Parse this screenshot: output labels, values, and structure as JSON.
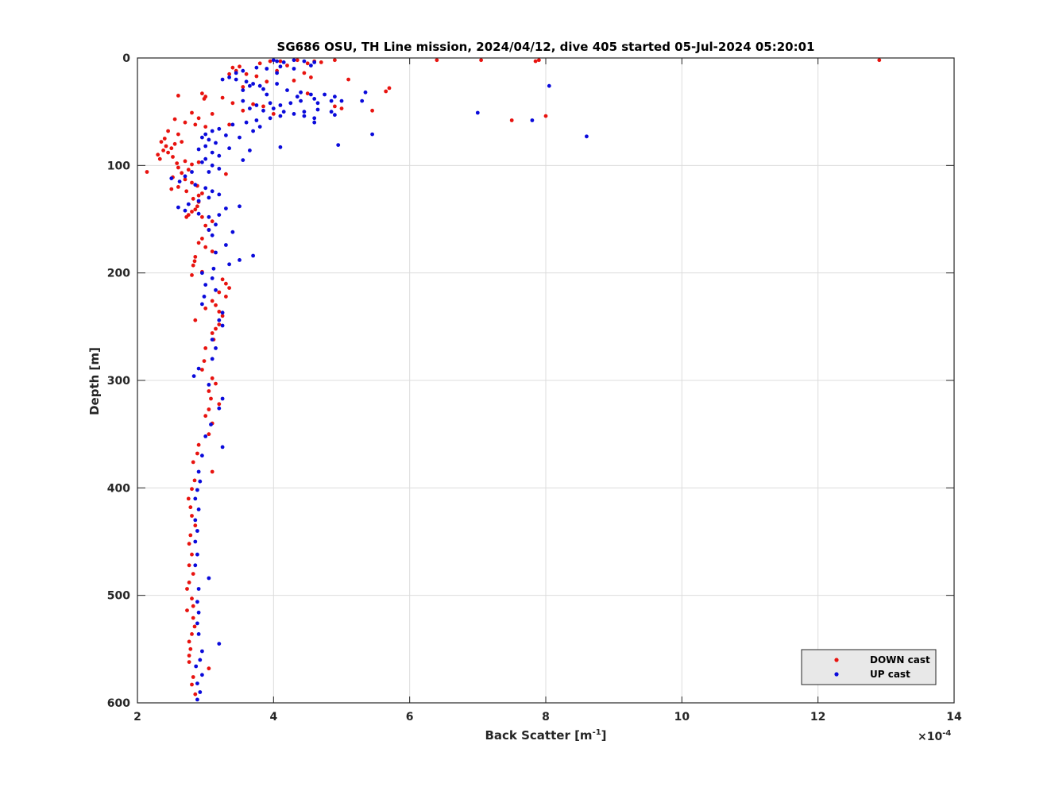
{
  "chart_data": {
    "type": "scatter",
    "title": "SG686 OSU, TH Line mission, 2024/04/12, dive 405 started 05-Jul-2024 05:20:01",
    "xlabel": "Back Scatter [m",
    "xlabel_sup": "-1",
    "xlabel_end": "]",
    "ylabel": "Depth [m]",
    "x_multiplier_label": "×10",
    "x_multiplier_exp": "-4",
    "xlim": [
      2,
      14
    ],
    "ylim": [
      0,
      600
    ],
    "y_reversed": true,
    "grid": true,
    "legend_position": "bottom-right",
    "x_ticks": [
      "2",
      "4",
      "6",
      "8",
      "10",
      "12",
      "14"
    ],
    "y_ticks": [
      "0",
      "100",
      "200",
      "300",
      "400",
      "500",
      "600"
    ],
    "series": [
      {
        "name": "DOWN cast",
        "color": "#e8130f",
        "points": [
          [
            12.9,
            2
          ],
          [
            7.9,
            2
          ],
          [
            7.85,
            3
          ],
          [
            7.05,
            2
          ],
          [
            6.4,
            2
          ],
          [
            4.9,
            2
          ],
          [
            4.6,
            3
          ],
          [
            4.35,
            2
          ],
          [
            4.5,
            5
          ],
          [
            4.7,
            4
          ],
          [
            4.1,
            3
          ],
          [
            4.2,
            7
          ],
          [
            3.95,
            3
          ],
          [
            3.8,
            5
          ],
          [
            3.5,
            8
          ],
          [
            3.4,
            9
          ],
          [
            3.45,
            12
          ],
          [
            3.35,
            15
          ],
          [
            3.6,
            15
          ],
          [
            3.75,
            17
          ],
          [
            4.05,
            12
          ],
          [
            4.45,
            14
          ],
          [
            4.55,
            18
          ],
          [
            4.3,
            21
          ],
          [
            5.1,
            20
          ],
          [
            5.7,
            28
          ],
          [
            5.65,
            31
          ],
          [
            5.45,
            49
          ],
          [
            5.0,
            47
          ],
          [
            4.9,
            45
          ],
          [
            4.5,
            33
          ],
          [
            3.9,
            22
          ],
          [
            3.55,
            27
          ],
          [
            3.4,
            42
          ],
          [
            3.7,
            43
          ],
          [
            3.85,
            45
          ],
          [
            3.55,
            49
          ],
          [
            4.0,
            52
          ],
          [
            3.25,
            37
          ],
          [
            2.95,
            33
          ],
          [
            3.0,
            36
          ],
          [
            2.6,
            35
          ],
          [
            2.98,
            38
          ],
          [
            7.5,
            58
          ],
          [
            8.0,
            54
          ],
          [
            2.8,
            51
          ],
          [
            2.9,
            56
          ],
          [
            3.1,
            52
          ],
          [
            3.35,
            62
          ],
          [
            3.0,
            64
          ],
          [
            2.55,
            57
          ],
          [
            2.7,
            60
          ],
          [
            2.85,
            62
          ],
          [
            2.45,
            68
          ],
          [
            2.6,
            71
          ],
          [
            2.4,
            75
          ],
          [
            2.55,
            80
          ],
          [
            2.65,
            78
          ],
          [
            2.35,
            78
          ],
          [
            2.42,
            82
          ],
          [
            2.5,
            84
          ],
          [
            2.38,
            86
          ],
          [
            2.3,
            90
          ],
          [
            2.45,
            88
          ],
          [
            2.52,
            92
          ],
          [
            2.33,
            94
          ],
          [
            2.58,
            98
          ],
          [
            2.7,
            96
          ],
          [
            2.8,
            99
          ],
          [
            2.9,
            97
          ],
          [
            2.6,
            102
          ],
          [
            2.75,
            104
          ],
          [
            2.65,
            107
          ],
          [
            2.52,
            111
          ],
          [
            2.7,
            113
          ],
          [
            2.8,
            116
          ],
          [
            2.88,
            119
          ],
          [
            2.6,
            120
          ],
          [
            2.5,
            122
          ],
          [
            2.72,
            124
          ],
          [
            2.14,
            106
          ],
          [
            3.3,
            108
          ],
          [
            2.9,
            128
          ],
          [
            2.82,
            131
          ],
          [
            2.95,
            126
          ],
          [
            2.9,
            134
          ],
          [
            2.88,
            138
          ],
          [
            2.85,
            141
          ],
          [
            2.8,
            143
          ],
          [
            2.75,
            146
          ],
          [
            2.72,
            148
          ],
          [
            2.95,
            148
          ],
          [
            3.1,
            152
          ],
          [
            3.0,
            156
          ],
          [
            3.05,
            160
          ],
          [
            2.95,
            168
          ],
          [
            2.9,
            172
          ],
          [
            3.0,
            176
          ],
          [
            3.1,
            180
          ],
          [
            2.85,
            185
          ],
          [
            2.84,
            189
          ],
          [
            2.82,
            193
          ],
          [
            2.8,
            202
          ],
          [
            2.95,
            199
          ],
          [
            3.25,
            206
          ],
          [
            3.3,
            210
          ],
          [
            3.35,
            214
          ],
          [
            3.2,
            218
          ],
          [
            3.3,
            222
          ],
          [
            3.1,
            226
          ],
          [
            3.15,
            230
          ],
          [
            3.0,
            233
          ],
          [
            3.2,
            236
          ],
          [
            3.25,
            240
          ],
          [
            2.85,
            244
          ],
          [
            3.2,
            248
          ],
          [
            3.15,
            252
          ],
          [
            3.1,
            256
          ],
          [
            3.12,
            262
          ],
          [
            3.0,
            270
          ],
          [
            2.98,
            282
          ],
          [
            2.95,
            290
          ],
          [
            3.1,
            298
          ],
          [
            3.15,
            303
          ],
          [
            3.05,
            310
          ],
          [
            3.08,
            317
          ],
          [
            3.2,
            322
          ],
          [
            3.05,
            327
          ],
          [
            3.0,
            333
          ],
          [
            3.1,
            340
          ],
          [
            3.05,
            350
          ],
          [
            2.9,
            360
          ],
          [
            2.88,
            368
          ],
          [
            2.82,
            376
          ],
          [
            3.1,
            385
          ],
          [
            2.84,
            393
          ],
          [
            2.8,
            401
          ],
          [
            2.75,
            410
          ],
          [
            2.78,
            418
          ],
          [
            2.8,
            426
          ],
          [
            2.85,
            435
          ],
          [
            2.78,
            444
          ],
          [
            2.76,
            452
          ],
          [
            2.8,
            462
          ],
          [
            2.76,
            472
          ],
          [
            2.82,
            480
          ],
          [
            2.76,
            488
          ],
          [
            2.73,
            494
          ],
          [
            2.8,
            503
          ],
          [
            2.82,
            510
          ],
          [
            2.73,
            514
          ],
          [
            2.82,
            521
          ],
          [
            2.84,
            529
          ],
          [
            2.8,
            536
          ],
          [
            2.76,
            543
          ],
          [
            2.78,
            550
          ],
          [
            2.76,
            556
          ],
          [
            2.76,
            562
          ],
          [
            3.05,
            568
          ],
          [
            2.82,
            576
          ],
          [
            2.8,
            583
          ],
          [
            2.85,
            592
          ]
        ]
      },
      {
        "name": "UP cast",
        "color": "#0a0adb",
        "points": [
          [
            4.0,
            2
          ],
          [
            4.05,
            3
          ],
          [
            4.15,
            4
          ],
          [
            4.3,
            2
          ],
          [
            4.45,
            3
          ],
          [
            4.6,
            4
          ],
          [
            4.55,
            7
          ],
          [
            4.1,
            8
          ],
          [
            4.3,
            10
          ],
          [
            4.05,
            14
          ],
          [
            3.9,
            10
          ],
          [
            3.75,
            9
          ],
          [
            3.55,
            12
          ],
          [
            3.45,
            14
          ],
          [
            3.35,
            18
          ],
          [
            3.45,
            20
          ],
          [
            3.6,
            22
          ],
          [
            3.7,
            24
          ],
          [
            3.8,
            26
          ],
          [
            3.65,
            26
          ],
          [
            3.55,
            30
          ],
          [
            3.25,
            20
          ],
          [
            3.85,
            29
          ],
          [
            3.9,
            34
          ],
          [
            4.05,
            24
          ],
          [
            4.2,
            30
          ],
          [
            4.35,
            36
          ],
          [
            4.4,
            32
          ],
          [
            4.55,
            34
          ],
          [
            4.6,
            38
          ],
          [
            4.75,
            34
          ],
          [
            4.9,
            36
          ],
          [
            5.0,
            40
          ],
          [
            5.35,
            32
          ],
          [
            5.3,
            40
          ],
          [
            4.85,
            40
          ],
          [
            4.65,
            42
          ],
          [
            4.4,
            40
          ],
          [
            4.25,
            42
          ],
          [
            4.1,
            44
          ],
          [
            3.95,
            42
          ],
          [
            3.75,
            44
          ],
          [
            3.55,
            40
          ],
          [
            3.65,
            47
          ],
          [
            3.85,
            49
          ],
          [
            4.0,
            47
          ],
          [
            4.15,
            50
          ],
          [
            4.3,
            52
          ],
          [
            4.45,
            54
          ],
          [
            4.6,
            56
          ],
          [
            4.45,
            50
          ],
          [
            4.65,
            48
          ],
          [
            4.85,
            50
          ],
          [
            4.9,
            53
          ],
          [
            4.6,
            60
          ],
          [
            4.1,
            54
          ],
          [
            3.95,
            56
          ],
          [
            3.75,
            58
          ],
          [
            3.8,
            64
          ],
          [
            3.6,
            60
          ],
          [
            3.4,
            62
          ],
          [
            3.7,
            68
          ],
          [
            7.0,
            51
          ],
          [
            7.8,
            58
          ],
          [
            8.05,
            26
          ],
          [
            8.6,
            73
          ],
          [
            4.95,
            81
          ],
          [
            5.45,
            71
          ],
          [
            4.1,
            83
          ],
          [
            3.55,
            95
          ],
          [
            3.35,
            84
          ],
          [
            3.5,
            74
          ],
          [
            3.65,
            86
          ],
          [
            3.3,
            72
          ],
          [
            3.2,
            66
          ],
          [
            3.1,
            68
          ],
          [
            3.0,
            71
          ],
          [
            2.95,
            74
          ],
          [
            3.05,
            76
          ],
          [
            3.15,
            79
          ],
          [
            3.0,
            82
          ],
          [
            2.9,
            85
          ],
          [
            3.1,
            88
          ],
          [
            3.2,
            91
          ],
          [
            3.0,
            94
          ],
          [
            2.95,
            97
          ],
          [
            3.1,
            100
          ],
          [
            3.2,
            103
          ],
          [
            3.05,
            106
          ],
          [
            2.8,
            106
          ],
          [
            2.7,
            110
          ],
          [
            2.5,
            112
          ],
          [
            2.62,
            115
          ],
          [
            2.85,
            118
          ],
          [
            3.0,
            121
          ],
          [
            3.1,
            124
          ],
          [
            3.2,
            127
          ],
          [
            3.05,
            130
          ],
          [
            2.9,
            133
          ],
          [
            2.75,
            136
          ],
          [
            2.6,
            139
          ],
          [
            2.7,
            142
          ],
          [
            2.9,
            145
          ],
          [
            3.05,
            148
          ],
          [
            3.2,
            146
          ],
          [
            3.3,
            140
          ],
          [
            3.5,
            138
          ],
          [
            3.15,
            155
          ],
          [
            3.05,
            160
          ],
          [
            3.1,
            165
          ],
          [
            3.4,
            162
          ],
          [
            3.3,
            174
          ],
          [
            3.15,
            181
          ],
          [
            3.7,
            184
          ],
          [
            3.5,
            188
          ],
          [
            3.35,
            192
          ],
          [
            3.12,
            196
          ],
          [
            2.95,
            200
          ],
          [
            3.1,
            205
          ],
          [
            3.0,
            211
          ],
          [
            3.15,
            216
          ],
          [
            2.98,
            222
          ],
          [
            2.95,
            229
          ],
          [
            3.25,
            237
          ],
          [
            3.2,
            244
          ],
          [
            3.25,
            249
          ],
          [
            3.1,
            262
          ],
          [
            3.15,
            270
          ],
          [
            3.1,
            280
          ],
          [
            2.9,
            289
          ],
          [
            2.83,
            296
          ],
          [
            3.05,
            304
          ],
          [
            3.25,
            317
          ],
          [
            3.2,
            326
          ],
          [
            3.08,
            341
          ],
          [
            3.0,
            352
          ],
          [
            3.25,
            362
          ],
          [
            2.95,
            370
          ],
          [
            2.9,
            385
          ],
          [
            2.92,
            394
          ],
          [
            2.88,
            402
          ],
          [
            2.85,
            410
          ],
          [
            2.9,
            420
          ],
          [
            2.85,
            430
          ],
          [
            2.88,
            440
          ],
          [
            2.85,
            450
          ],
          [
            2.88,
            462
          ],
          [
            2.85,
            472
          ],
          [
            3.05,
            484
          ],
          [
            2.9,
            494
          ],
          [
            2.88,
            506
          ],
          [
            2.9,
            516
          ],
          [
            2.88,
            526
          ],
          [
            2.9,
            536
          ],
          [
            3.2,
            545
          ],
          [
            2.95,
            552
          ],
          [
            2.92,
            560
          ],
          [
            2.86,
            566
          ],
          [
            2.95,
            574
          ],
          [
            2.88,
            582
          ],
          [
            2.92,
            590
          ],
          [
            2.88,
            597
          ]
        ]
      }
    ]
  }
}
